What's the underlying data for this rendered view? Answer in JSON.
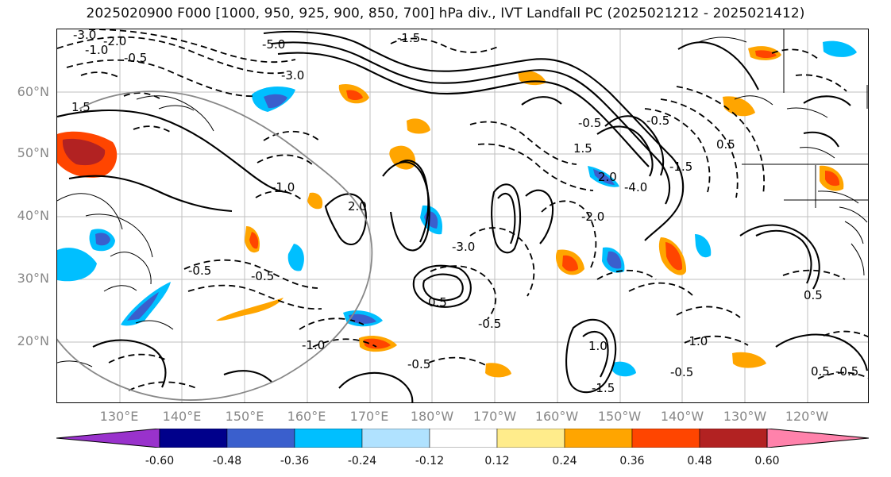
{
  "title": "2025020900 F000 [1000, 950, 925, 900, 850, 700] hPa div., IVT Landfall PC (2025021212 - 2025021412)",
  "latitude_labels": [
    "60°N",
    "50°N",
    "40°N",
    "30°N",
    "20°N"
  ],
  "longitude_labels": [
    "130°E",
    "140°E",
    "150°E",
    "160°E",
    "170°E",
    "180°W",
    "170°W",
    "160°W",
    "150°W",
    "140°W",
    "130°W",
    "120°W"
  ],
  "colorbar": {
    "labels": [
      "-0.60",
      "-0.48",
      "-0.36",
      "-0.24",
      "-0.12",
      "0.12",
      "0.24",
      "0.36",
      "0.48",
      "0.60"
    ],
    "colors": [
      "#9932CC",
      "#00008B",
      "#3A5FCD",
      "#00BFFF",
      "#B0E2FF",
      "#FFFFFF",
      "#FFEC8B",
      "#FFA500",
      "#FF4500",
      "#B22222",
      "#FF82AB"
    ]
  },
  "contour_labels": [
    "-3.0",
    "-2.0",
    "-1.0",
    "-0.5",
    "-5.0",
    "-3.0",
    "-1.5",
    "-0.5",
    "1.5",
    "2.0",
    "0.5",
    "0.5",
    "-1.0",
    "-0.5",
    "2.0",
    "-0.5",
    "-1.0",
    "0.5",
    "-0.5",
    "-1.5",
    "-4.0",
    "-0.5",
    "0.5",
    "-2.0",
    "-0.5",
    "-3.0",
    "-1.0",
    "-0.5",
    "-0.5",
    "1.0",
    "-1.5",
    "1.5"
  ]
}
